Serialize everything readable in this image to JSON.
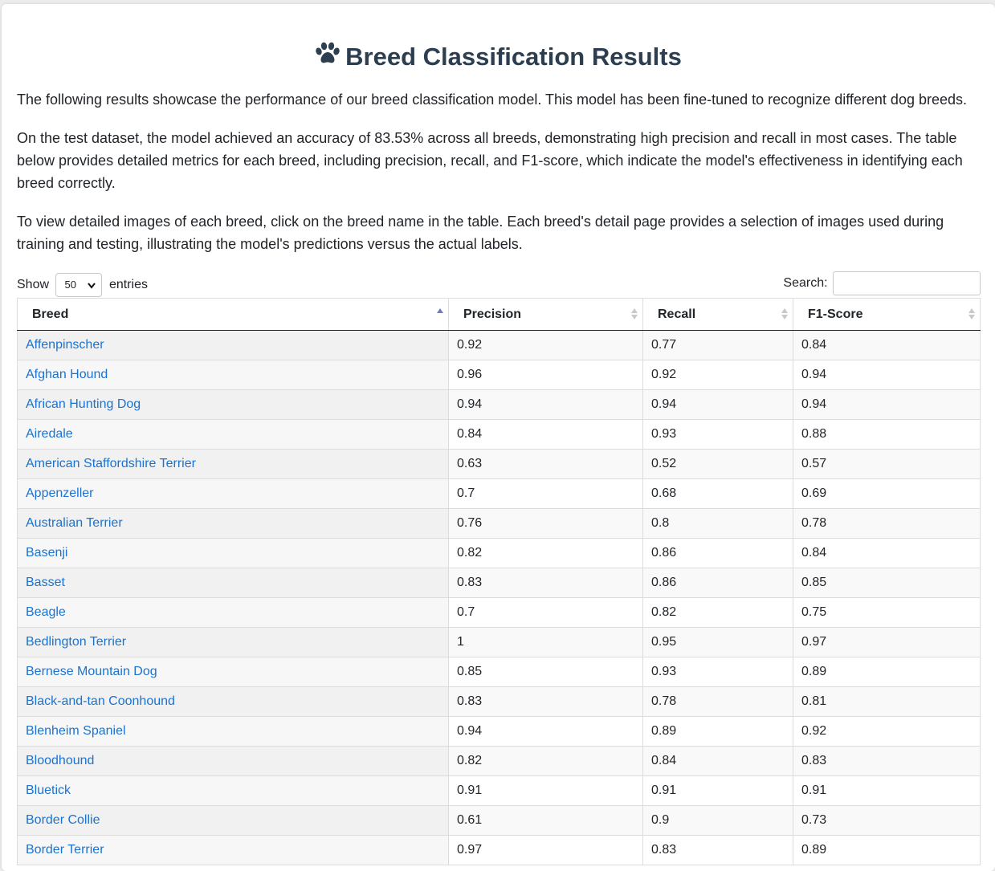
{
  "header": {
    "icon": "paw-icon",
    "title": "Breed Classification Results"
  },
  "intro": {
    "p1": "The following results showcase the performance of our breed classification model. This model has been fine-tuned to recognize different dog breeds.",
    "p2": "On the test dataset, the model achieved an accuracy of 83.53% across all breeds, demonstrating high precision and recall in most cases. The table below provides detailed metrics for each breed, including precision, recall, and F1-score, which indicate the model's effectiveness in identifying each breed correctly.",
    "p3": "To view detailed images of each breed, click on the breed name in the table. Each breed's detail page provides a selection of images used during training and testing, illustrating the model's predictions versus the actual labels."
  },
  "controls": {
    "show_label": "Show",
    "entries_value": "50",
    "entries_label": "entries",
    "search_label": "Search:",
    "search_value": ""
  },
  "table": {
    "columns": [
      "Breed",
      "Precision",
      "Recall",
      "F1-Score"
    ],
    "sorted_column": "Breed",
    "rows": [
      {
        "breed": "Affenpinscher",
        "precision": "0.92",
        "recall": "0.77",
        "f1": "0.84"
      },
      {
        "breed": "Afghan Hound",
        "precision": "0.96",
        "recall": "0.92",
        "f1": "0.94"
      },
      {
        "breed": "African Hunting Dog",
        "precision": "0.94",
        "recall": "0.94",
        "f1": "0.94"
      },
      {
        "breed": "Airedale",
        "precision": "0.84",
        "recall": "0.93",
        "f1": "0.88"
      },
      {
        "breed": "American Staffordshire Terrier",
        "precision": "0.63",
        "recall": "0.52",
        "f1": "0.57"
      },
      {
        "breed": "Appenzeller",
        "precision": "0.7",
        "recall": "0.68",
        "f1": "0.69"
      },
      {
        "breed": "Australian Terrier",
        "precision": "0.76",
        "recall": "0.8",
        "f1": "0.78"
      },
      {
        "breed": "Basenji",
        "precision": "0.82",
        "recall": "0.86",
        "f1": "0.84"
      },
      {
        "breed": "Basset",
        "precision": "0.83",
        "recall": "0.86",
        "f1": "0.85"
      },
      {
        "breed": "Beagle",
        "precision": "0.7",
        "recall": "0.82",
        "f1": "0.75"
      },
      {
        "breed": "Bedlington Terrier",
        "precision": "1",
        "recall": "0.95",
        "f1": "0.97"
      },
      {
        "breed": "Bernese Mountain Dog",
        "precision": "0.85",
        "recall": "0.93",
        "f1": "0.89"
      },
      {
        "breed": "Black-and-tan Coonhound",
        "precision": "0.83",
        "recall": "0.78",
        "f1": "0.81"
      },
      {
        "breed": "Blenheim Spaniel",
        "precision": "0.94",
        "recall": "0.89",
        "f1": "0.92"
      },
      {
        "breed": "Bloodhound",
        "precision": "0.82",
        "recall": "0.84",
        "f1": "0.83"
      },
      {
        "breed": "Bluetick",
        "precision": "0.91",
        "recall": "0.91",
        "f1": "0.91"
      },
      {
        "breed": "Border Collie",
        "precision": "0.61",
        "recall": "0.9",
        "f1": "0.73"
      },
      {
        "breed": "Border Terrier",
        "precision": "0.97",
        "recall": "0.83",
        "f1": "0.89"
      }
    ]
  },
  "colors": {
    "title": "#2c3e50",
    "link": "#1a73d1",
    "sort_active": "#6b7cc8"
  }
}
